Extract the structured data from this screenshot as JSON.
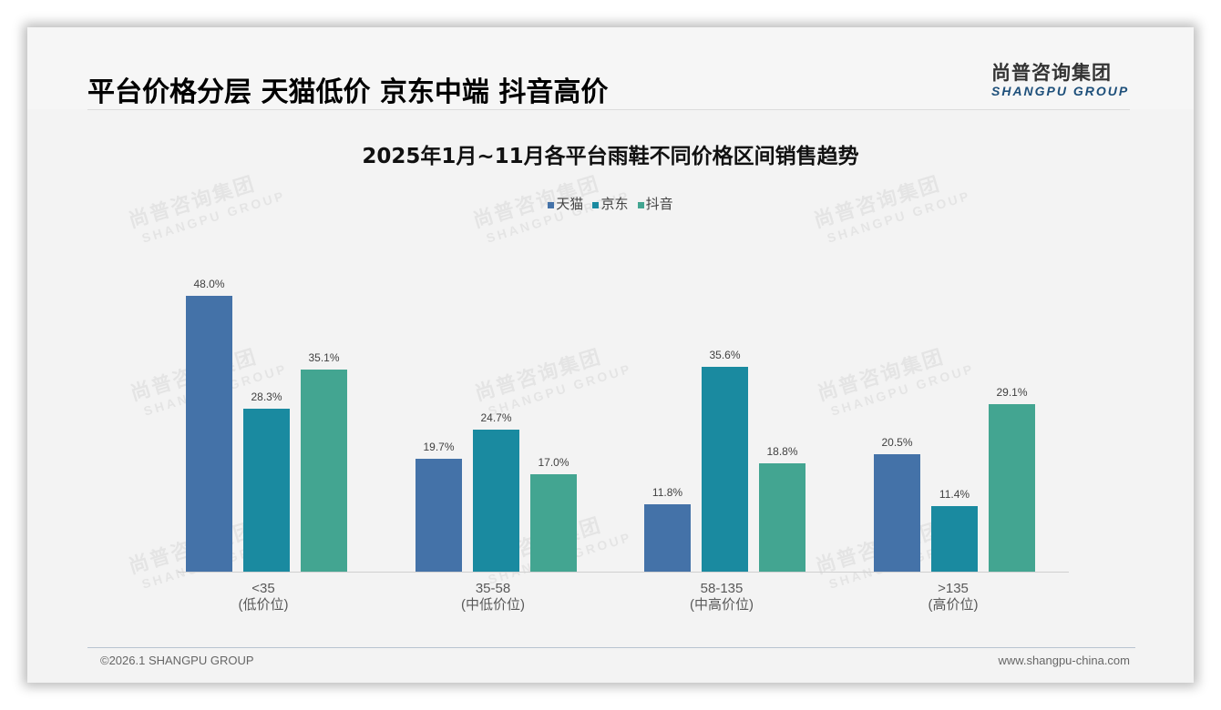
{
  "header": {
    "title": "平台价格分层 天猫低价 京东中端 抖音高价",
    "logo_cn": "尚普咨询集团",
    "logo_en": "SHANGPU GROUP"
  },
  "watermark": {
    "cn": "尚普咨询集团",
    "en": "SHANGPU GROUP"
  },
  "chart": {
    "title": "2025年1月~11月各平台雨鞋不同价格区间销售趋势",
    "legend": [
      {
        "label": "天猫",
        "color": "#4472a8"
      },
      {
        "label": "京东",
        "color": "#1a8aa0"
      },
      {
        "label": "抖音",
        "color": "#43a591"
      }
    ],
    "categories": [
      {
        "line1": "<35",
        "line2": "(低价位)"
      },
      {
        "line1": "35-58",
        "line2": "(中低价位)"
      },
      {
        "line1": "58-135",
        "line2": "(中高价位)"
      },
      {
        "line1": ">135",
        "line2": "(高价位)"
      }
    ]
  },
  "chart_data": {
    "type": "bar",
    "title": "2025年1月~11月各平台雨鞋不同价格区间销售趋势",
    "categories": [
      "<35 (低价位)",
      "35-58 (中低价位)",
      "58-135 (中高价位)",
      ">135 (高价位)"
    ],
    "series": [
      {
        "name": "天猫",
        "values": [
          48.0,
          19.7,
          11.8,
          20.5
        ],
        "labels": [
          "48.0%",
          "19.7%",
          "11.8%",
          "20.5%"
        ],
        "color": "#4472a8"
      },
      {
        "name": "京东",
        "values": [
          28.3,
          24.7,
          35.6,
          11.4
        ],
        "labels": [
          "28.3%",
          "24.7%",
          "35.6%",
          "11.4%"
        ],
        "color": "#1a8aa0"
      },
      {
        "name": "抖音",
        "values": [
          35.1,
          17.0,
          18.8,
          29.1
        ],
        "labels": [
          "35.1%",
          "17.0%",
          "18.8%",
          "29.1%"
        ],
        "color": "#43a591"
      }
    ],
    "xlabel": "",
    "ylabel": "",
    "unit": "%",
    "legend_position": "top",
    "grid": false,
    "ylim": [
      0,
      50
    ]
  },
  "footer": {
    "copyright": "©2026.1 SHANGPU GROUP",
    "website": "www.shangpu-china.com"
  }
}
